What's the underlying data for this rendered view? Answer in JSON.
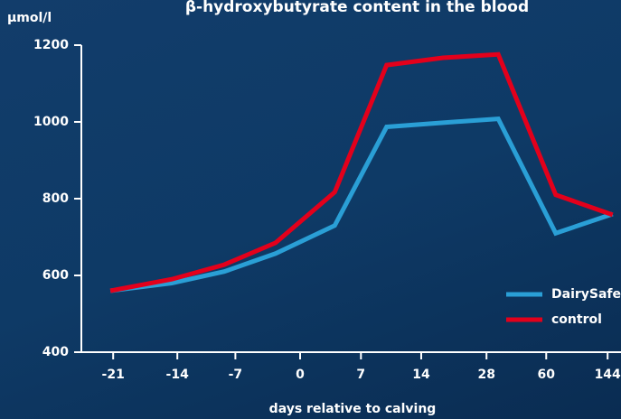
{
  "chart_data": {
    "type": "line",
    "title": "β-hydroxybutyrate content in the blood",
    "y_label": "µmol/l",
    "x_label": "days relative to calving",
    "x": [
      0,
      1.1,
      2.04,
      2.96,
      4.02,
      4.95,
      5.96,
      6.95,
      7.98,
      9.0
    ],
    "series": [
      {
        "name": "DairySafe",
        "color": "#2a9fd6",
        "values": [
          560,
          580,
          610,
          657,
          730,
          987,
          998,
          1008,
          710,
          760
        ]
      },
      {
        "name": "control",
        "color": "#e3001b",
        "values": [
          560,
          590,
          628,
          685,
          817,
          1148,
          1167,
          1176,
          810,
          758
        ]
      }
    ],
    "xlim": [
      -0.52,
      9.15
    ],
    "xticks": [
      {
        "value": 0.05,
        "label": "-21"
      },
      {
        "value": 1.2,
        "label": "-14"
      },
      {
        "value": 2.24,
        "label": "-7"
      },
      {
        "value": 3.4,
        "label": "0"
      },
      {
        "value": 4.49,
        "label": "7"
      },
      {
        "value": 5.57,
        "label": "14"
      },
      {
        "value": 6.74,
        "label": "28"
      },
      {
        "value": 7.81,
        "label": "60"
      },
      {
        "value": 8.91,
        "label": "144"
      }
    ],
    "ylim": [
      400,
      1200
    ],
    "yticks": [
      400,
      600,
      800,
      1000,
      1200
    ],
    "legend": "lower right"
  }
}
